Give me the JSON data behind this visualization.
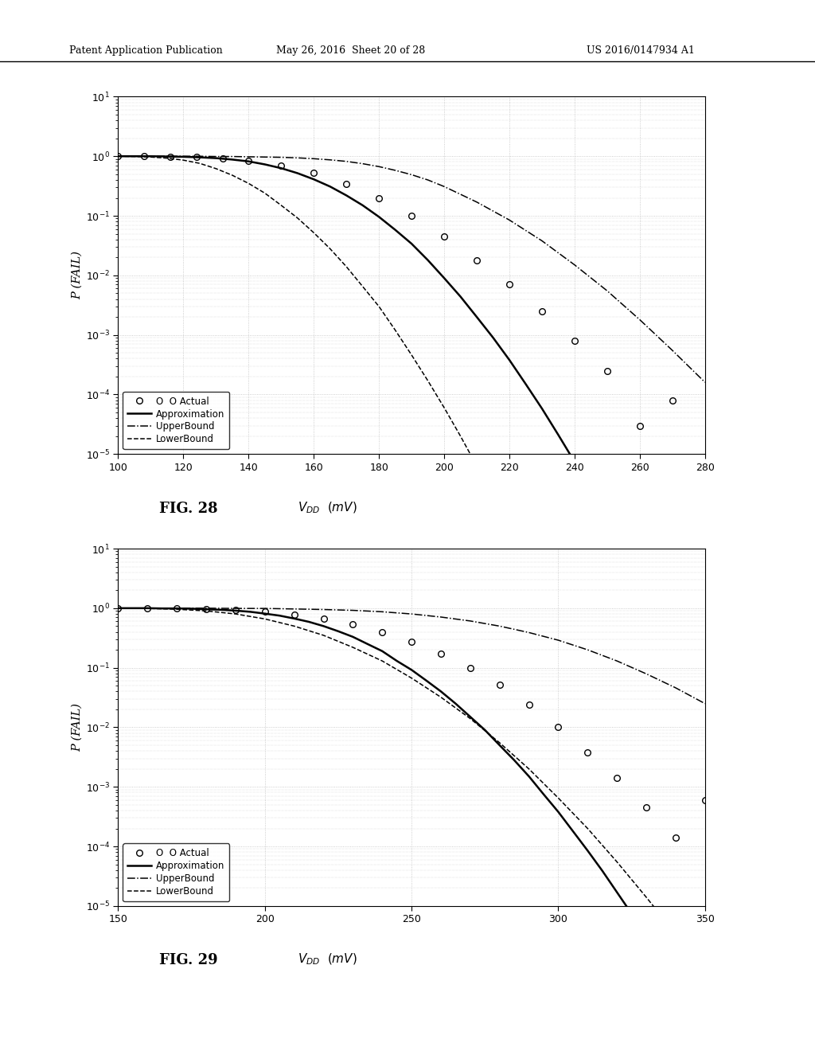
{
  "header_left": "Patent Application Publication",
  "header_mid": "May 26, 2016  Sheet 20 of 28",
  "header_right": "US 2016/0147934 A1",
  "fig28": {
    "ylabel": "P (FAIL)",
    "xlim": [
      100,
      280
    ],
    "xticks": [
      100,
      120,
      140,
      160,
      180,
      200,
      220,
      240,
      260,
      280
    ],
    "actual_x": [
      100,
      108,
      116,
      124,
      132,
      140,
      150,
      160,
      170,
      180,
      190,
      200,
      210,
      220,
      230,
      240,
      250,
      260,
      270
    ],
    "actual_y": [
      1.0,
      1.0,
      0.99,
      0.97,
      0.93,
      0.85,
      0.7,
      0.52,
      0.34,
      0.2,
      0.1,
      0.045,
      0.018,
      0.007,
      0.0025,
      0.0008,
      0.00025,
      3e-05,
      8e-05
    ],
    "approx_x": [
      100,
      105,
      110,
      115,
      120,
      125,
      130,
      135,
      140,
      145,
      150,
      155,
      160,
      165,
      170,
      175,
      180,
      185,
      190,
      195,
      200,
      205,
      210,
      215,
      220,
      225,
      230,
      235,
      240,
      245,
      250,
      255,
      260,
      265,
      270,
      275,
      280
    ],
    "approx_y": [
      1.0,
      1.0,
      1.0,
      0.99,
      0.98,
      0.96,
      0.93,
      0.88,
      0.82,
      0.73,
      0.63,
      0.52,
      0.41,
      0.31,
      0.22,
      0.15,
      0.096,
      0.058,
      0.034,
      0.018,
      0.009,
      0.0044,
      0.002,
      0.0009,
      0.00038,
      0.00015,
      5.8e-05,
      2.1e-05,
      7.4e-06,
      2.5e-06,
      8e-07,
      2.5e-07,
      7.5e-08,
      2.2e-08,
      6.2e-09,
      1.7e-09,
      4.5e-10
    ],
    "upper_x": [
      100,
      105,
      110,
      115,
      120,
      125,
      130,
      135,
      140,
      145,
      150,
      155,
      160,
      165,
      170,
      175,
      180,
      185,
      190,
      195,
      200,
      210,
      220,
      230,
      240,
      250,
      260,
      270,
      280
    ],
    "upper_y": [
      1.0,
      1.0,
      1.0,
      1.0,
      1.0,
      1.0,
      0.99,
      0.99,
      0.98,
      0.97,
      0.96,
      0.94,
      0.91,
      0.87,
      0.82,
      0.75,
      0.67,
      0.58,
      0.49,
      0.4,
      0.31,
      0.17,
      0.085,
      0.038,
      0.015,
      0.0055,
      0.0018,
      0.00055,
      0.00016
    ],
    "lower_x": [
      100,
      105,
      110,
      115,
      120,
      125,
      130,
      135,
      140,
      145,
      150,
      155,
      160,
      165,
      170,
      175,
      180,
      185,
      190,
      195,
      200,
      205,
      210,
      215,
      220,
      225,
      230,
      235,
      240,
      245,
      250,
      260,
      270,
      280
    ],
    "lower_y": [
      1.0,
      0.99,
      0.97,
      0.93,
      0.86,
      0.76,
      0.62,
      0.48,
      0.35,
      0.24,
      0.15,
      0.092,
      0.052,
      0.028,
      0.014,
      0.0065,
      0.003,
      0.0012,
      0.00046,
      0.00017,
      6e-05,
      2e-05,
      6.3e-06,
      1.9e-06,
      5.6e-07,
      1.6e-07,
      4.4e-08,
      1.2e-08,
      3.1e-09,
      7.7e-10,
      1.9e-10,
      1.1e-11,
      5.2e-13,
      2.2e-14
    ]
  },
  "fig29": {
    "ylabel": "P (FAIL)",
    "xlim": [
      150,
      350
    ],
    "xticks": [
      150,
      200,
      250,
      300,
      350
    ],
    "actual_x": [
      150,
      160,
      170,
      180,
      190,
      200,
      210,
      220,
      230,
      240,
      250,
      260,
      270,
      280,
      290,
      300,
      310,
      320,
      330,
      340,
      350
    ],
    "actual_y": [
      1.0,
      1.0,
      0.99,
      0.97,
      0.93,
      0.87,
      0.78,
      0.67,
      0.53,
      0.4,
      0.27,
      0.17,
      0.098,
      0.052,
      0.024,
      0.01,
      0.0038,
      0.0014,
      0.00045,
      0.00014,
      0.0006
    ],
    "approx_x": [
      150,
      155,
      160,
      165,
      170,
      175,
      180,
      185,
      190,
      195,
      200,
      205,
      210,
      215,
      220,
      225,
      230,
      235,
      240,
      245,
      250,
      255,
      260,
      265,
      270,
      275,
      280,
      285,
      290,
      295,
      300,
      305,
      310,
      315,
      320,
      325,
      330,
      335,
      340,
      345,
      350
    ],
    "approx_y": [
      1.0,
      1.0,
      1.0,
      0.99,
      0.99,
      0.98,
      0.96,
      0.94,
      0.91,
      0.87,
      0.81,
      0.75,
      0.67,
      0.59,
      0.5,
      0.41,
      0.33,
      0.25,
      0.19,
      0.13,
      0.092,
      0.061,
      0.04,
      0.025,
      0.015,
      0.009,
      0.005,
      0.0028,
      0.0015,
      0.00075,
      0.00038,
      0.00018,
      8.5e-05,
      3.9e-05,
      1.7e-05,
      7.4e-06,
      3.1e-06,
      1.3e-06,
      5.1e-07,
      1.9e-07,
      7.2e-08
    ],
    "upper_x": [
      150,
      160,
      170,
      180,
      190,
      200,
      210,
      220,
      230,
      240,
      250,
      260,
      270,
      280,
      290,
      300,
      310,
      320,
      330,
      340,
      350
    ],
    "upper_y": [
      1.0,
      1.0,
      1.0,
      1.0,
      0.99,
      0.99,
      0.97,
      0.95,
      0.92,
      0.87,
      0.8,
      0.71,
      0.61,
      0.5,
      0.39,
      0.29,
      0.2,
      0.13,
      0.079,
      0.046,
      0.025
    ],
    "lower_x": [
      150,
      160,
      170,
      180,
      190,
      200,
      210,
      220,
      230,
      240,
      250,
      260,
      270,
      280,
      290,
      300,
      310,
      320,
      330,
      340,
      350
    ],
    "lower_y": [
      1.0,
      0.99,
      0.96,
      0.9,
      0.8,
      0.66,
      0.5,
      0.35,
      0.22,
      0.13,
      0.067,
      0.032,
      0.014,
      0.0055,
      0.002,
      0.00065,
      0.0002,
      5.5e-05,
      1.4e-05,
      3.4e-06,
      7.7e-07
    ]
  },
  "background_color": "#ffffff",
  "grid_color": "#c0c0c0",
  "text_color": "#000000"
}
